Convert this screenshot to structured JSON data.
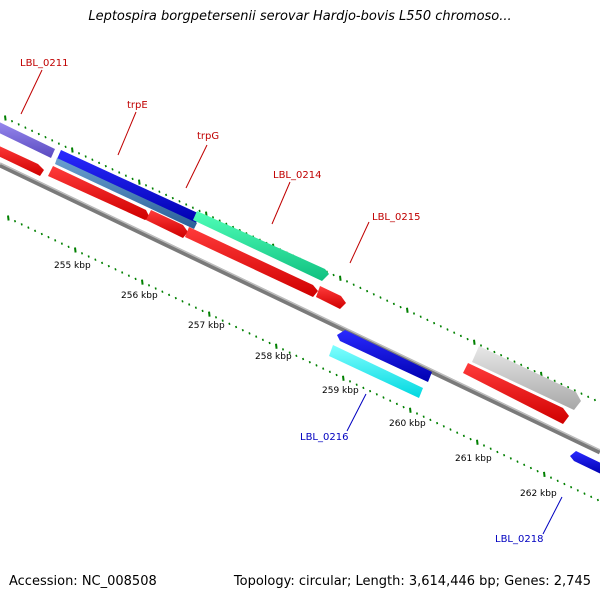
{
  "title": "Leptospira borgpetersenii serovar Hardjo-bovis L550 chromoso...",
  "footer": {
    "accession": "Accession: NC_008508",
    "topology": "Topology: circular; Length: 3,614,446 bp; Genes: 2,745"
  },
  "colors": {
    "backbone": "#8c8c8c",
    "tick_marks": "#008000",
    "upper_label": "#c00000",
    "lower_label": "#0000c0",
    "label_text_top": "#c00000",
    "label_text_bottom": "#0000c0"
  },
  "ticks": {
    "labels": [
      "255 kbp",
      "256 kbp",
      "257 kbp",
      "258 kbp",
      "259 kbp",
      "260 kbp",
      "261 kbp",
      "262 kbp"
    ]
  },
  "genes": [
    {
      "name": "LBL_0211",
      "strand": "forward",
      "color": "#7a6ad8"
    },
    {
      "name": "trpE",
      "strand": "forward",
      "color": "#1010d0"
    },
    {
      "name": "trpG",
      "strand": "forward",
      "color": "#4682b4"
    },
    {
      "name": "LBL_0214",
      "strand": "forward",
      "color": "#20e89a"
    },
    {
      "name": "LBL_0215",
      "strand": "forward",
      "color": "#d0d0d0"
    },
    {
      "name": "LBL_0216",
      "strand": "reverse",
      "color": "#00ffff"
    },
    {
      "name": "LBL_0218",
      "strand": "reverse",
      "color": "#1010d0"
    }
  ],
  "orfs_color": "#ff0000",
  "backbone_label": ""
}
